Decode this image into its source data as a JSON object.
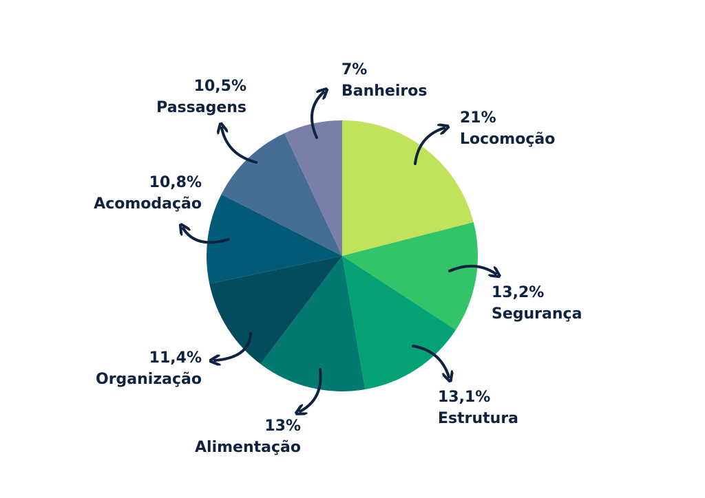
{
  "chart_data": {
    "type": "pie",
    "categories": [
      "Locomoção",
      "Segurança",
      "Estrutura",
      "Alimentação",
      "Organização",
      "Acomodação",
      "Passagens",
      "Banheiros"
    ],
    "values": [
      21,
      13.2,
      13.1,
      13,
      11.4,
      10.8,
      10.5,
      7
    ],
    "value_labels": [
      "21%",
      "13,2%",
      "13,1%",
      "13%",
      "11,4%",
      "10,8%",
      "10,5%",
      "7%"
    ],
    "colors": [
      "#c1e35c",
      "#33c46a",
      "#05a276",
      "#037a6f",
      "#034c5e",
      "#035b78",
      "#466e94",
      "#7a7faa"
    ]
  }
}
